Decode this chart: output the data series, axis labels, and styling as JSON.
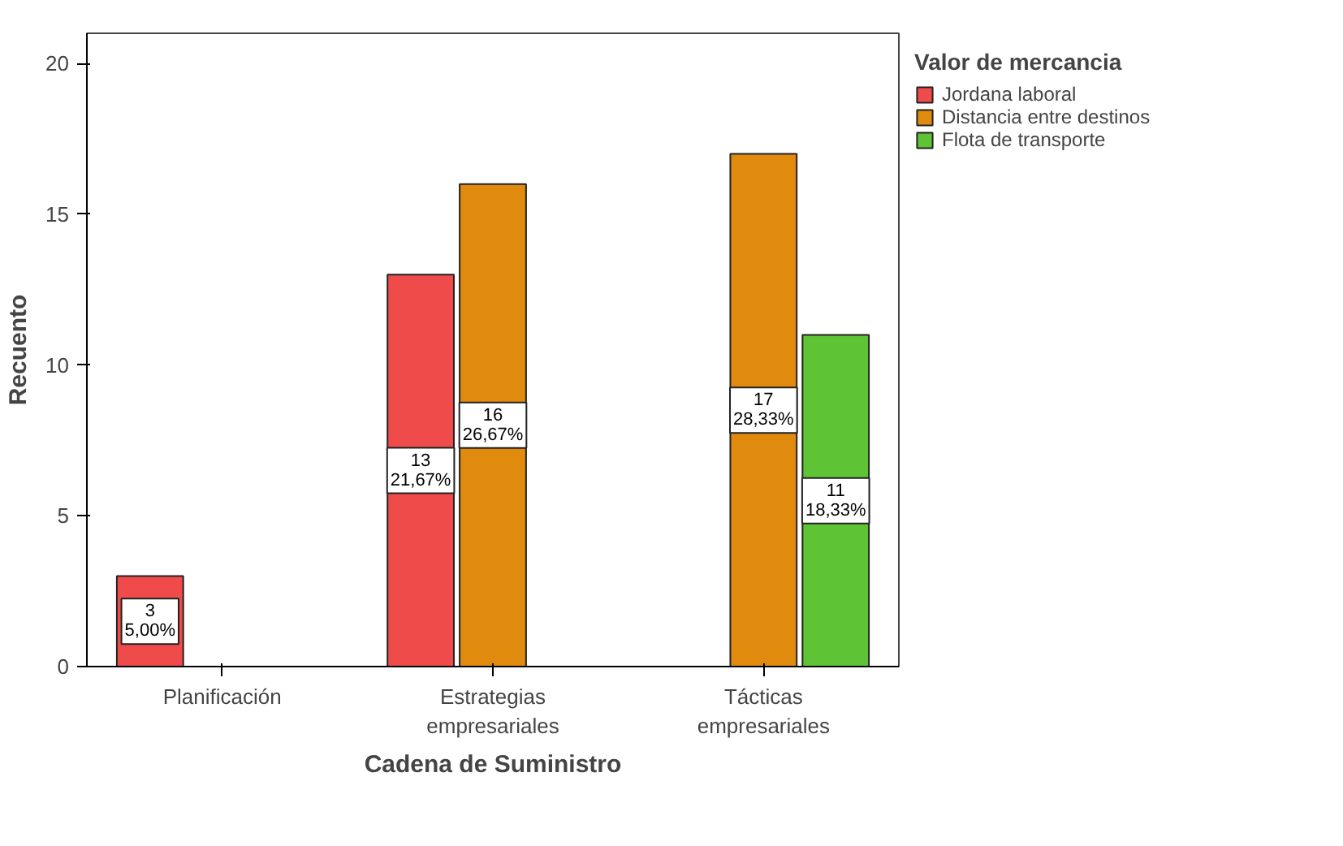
{
  "chart_data": {
    "type": "bar",
    "xlabel": "Cadena de Suministro",
    "ylabel": "Recuento",
    "legend_title": "Valor de mercancia",
    "categories": [
      "Planificación",
      "Estrategias empresariales",
      "Tácticas empresariales"
    ],
    "series": [
      {
        "name": "Jordana laboral",
        "color": "#ef4b4b",
        "values": [
          3,
          13,
          null
        ],
        "value_labels": [
          "3\n5,00%",
          "13\n21,67%",
          null
        ]
      },
      {
        "name": "Distancia entre destinos",
        "color": "#e08a0e",
        "values": [
          null,
          16,
          17
        ],
        "value_labels": [
          null,
          "16\n26,67%",
          "17\n28,33%"
        ]
      },
      {
        "name": "Flota de transporte",
        "color": "#5ec435",
        "values": [
          null,
          null,
          11
        ],
        "value_labels": [
          null,
          null,
          "11\n18,33%"
        ]
      }
    ],
    "ylim": [
      0,
      21
    ],
    "yticks": [
      0,
      5,
      10,
      15,
      20
    ],
    "grid": false,
    "legend": "top right"
  }
}
